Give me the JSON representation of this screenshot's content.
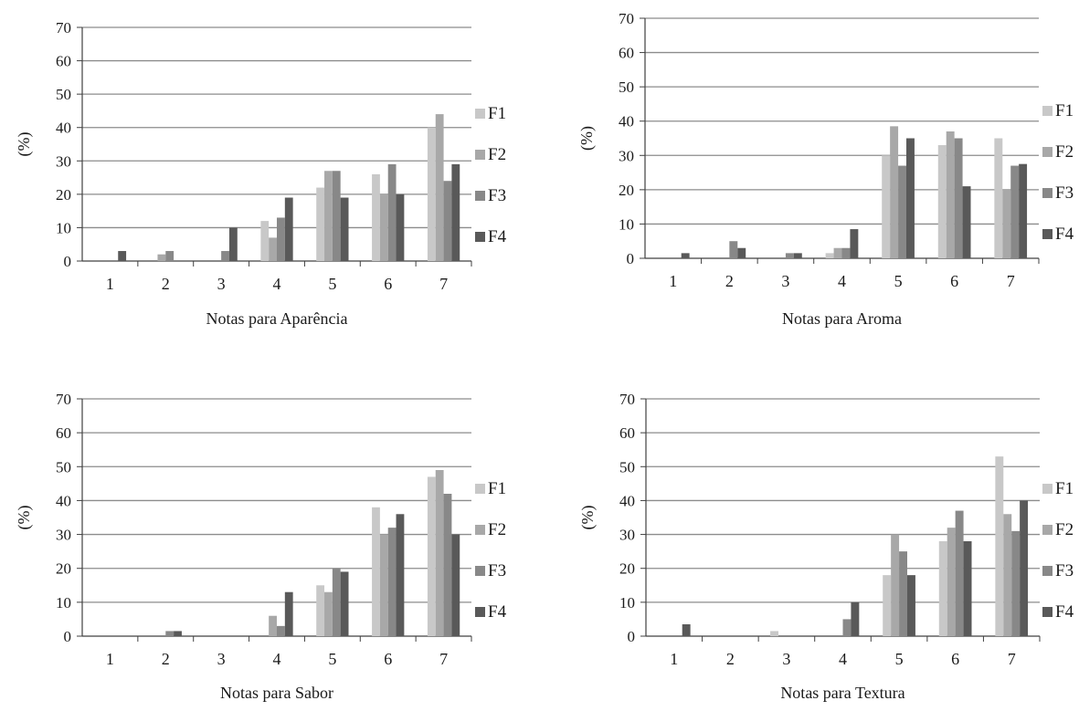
{
  "chart_data": [
    {
      "type": "bar",
      "xlabel": "Notas para Aparência",
      "ylabel": "(%)",
      "ylim": [
        0,
        70
      ],
      "yticks": [
        0,
        10,
        20,
        30,
        40,
        50,
        60,
        70
      ],
      "grid": true,
      "legend": "right",
      "categories": [
        "1",
        "2",
        "3",
        "4",
        "5",
        "6",
        "7"
      ],
      "series": [
        {
          "name": "F1",
          "values": [
            0,
            0,
            0,
            12,
            22,
            26,
            40
          ]
        },
        {
          "name": "F2",
          "values": [
            0,
            2,
            0,
            7,
            27,
            20,
            44
          ]
        },
        {
          "name": "F3",
          "values": [
            0,
            3,
            3,
            13,
            27,
            29,
            24
          ]
        },
        {
          "name": "F4",
          "values": [
            3,
            0,
            10,
            19,
            19,
            20,
            29
          ]
        }
      ]
    },
    {
      "type": "bar",
      "xlabel": "Notas para Aroma",
      "ylabel": "(%)",
      "ylim": [
        0,
        70
      ],
      "yticks": [
        0,
        10,
        20,
        30,
        40,
        50,
        60,
        70
      ],
      "grid": true,
      "legend": "right",
      "categories": [
        "1",
        "2",
        "3",
        "4",
        "5",
        "6",
        "7"
      ],
      "series": [
        {
          "name": "F1",
          "values": [
            0,
            0,
            0,
            1.5,
            30,
            33,
            35
          ]
        },
        {
          "name": "F2",
          "values": [
            0,
            0,
            0,
            3,
            38.5,
            37,
            20
          ]
        },
        {
          "name": "F3",
          "values": [
            0,
            5,
            1.5,
            3,
            27,
            35,
            27
          ]
        },
        {
          "name": "F4",
          "values": [
            1.5,
            3,
            1.5,
            8.5,
            35,
            21,
            27.5
          ]
        }
      ]
    },
    {
      "type": "bar",
      "xlabel": "Notas para Sabor",
      "ylabel": "(%)",
      "ylim": [
        0,
        70
      ],
      "yticks": [
        0,
        10,
        20,
        30,
        40,
        50,
        60,
        70
      ],
      "grid": true,
      "legend": "right",
      "categories": [
        "1",
        "2",
        "3",
        "4",
        "5",
        "6",
        "7"
      ],
      "series": [
        {
          "name": "F1",
          "values": [
            0,
            0,
            0,
            0,
            15,
            38,
            47
          ]
        },
        {
          "name": "F2",
          "values": [
            0,
            0,
            0,
            6,
            13,
            30,
            49
          ]
        },
        {
          "name": "F3",
          "values": [
            0,
            1.5,
            0,
            3,
            20,
            32,
            42
          ]
        },
        {
          "name": "F4",
          "values": [
            0,
            1.5,
            0,
            13,
            19,
            36,
            30
          ]
        }
      ]
    },
    {
      "type": "bar",
      "xlabel": "Notas para Textura",
      "ylabel": "(%)",
      "ylim": [
        0,
        70
      ],
      "yticks": [
        0,
        10,
        20,
        30,
        40,
        50,
        60,
        70
      ],
      "grid": true,
      "legend": "right",
      "categories": [
        "1",
        "2",
        "3",
        "4",
        "5",
        "6",
        "7"
      ],
      "series": [
        {
          "name": "F1",
          "values": [
            0,
            0,
            1.5,
            0,
            18,
            28,
            53
          ]
        },
        {
          "name": "F2",
          "values": [
            0,
            0,
            0,
            0,
            30,
            32,
            36
          ]
        },
        {
          "name": "F3",
          "values": [
            0,
            0,
            0,
            5,
            25,
            37,
            31
          ]
        },
        {
          "name": "F4",
          "values": [
            3.5,
            0,
            0,
            10,
            18,
            28,
            40
          ]
        }
      ]
    }
  ],
  "colors": {
    "F1": "#c8c8c8",
    "F2": "#a8a8a8",
    "F3": "#888888",
    "F4": "#595959",
    "grid": "#8c8c8c",
    "axis": "#404040",
    "text": "#1a1a1a"
  }
}
